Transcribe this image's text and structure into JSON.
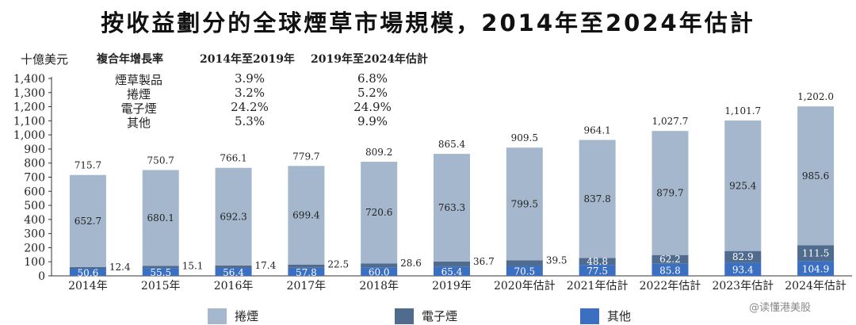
{
  "title": "按收益劃分的全球煙草市場規模，2014年至2024年估計",
  "unit_label": "十億美元",
  "cagr_table": {
    "header": "複合年增長率",
    "col1": "2014年至2019年",
    "col2": "2019年至2024年估計",
    "rows": [
      {
        "label": "煙草製品",
        "v1": "3.9%",
        "v2": "6.8%"
      },
      {
        "label": "捲煙",
        "v1": "3.2%",
        "v2": "5.2%"
      },
      {
        "label": "電子煙",
        "v1": "24.2%",
        "v2": "24.9%"
      },
      {
        "label": "其他",
        "v1": "5.3%",
        "v2": "9.9%"
      }
    ]
  },
  "colors": {
    "cigarettes": "#a5b7cc",
    "ecig": "#4f6b8e",
    "other": "#3a6fc2"
  },
  "legend": {
    "cigarettes": "捲煙",
    "ecig": "電子煙",
    "other": "其他"
  },
  "watermark": "@读懂港美股",
  "chart_data": {
    "type": "bar",
    "stacked": true,
    "title": "按收益劃分的全球煙草市場規模，2014年至2024年估計",
    "ylabel": "十億美元",
    "ylim": [
      0,
      1400
    ],
    "yticks": [
      "0",
      "100",
      "200",
      "300",
      "400",
      "500",
      "600",
      "700",
      "800",
      "900",
      "1,000",
      "1,100",
      "1,200",
      "1,300",
      "1,400"
    ],
    "categories": [
      "2014年",
      "2015年",
      "2016年",
      "2017年",
      "2018年",
      "2019年",
      "2020年估計",
      "2021年估計",
      "2022年估計",
      "2023年估計",
      "2024年估計"
    ],
    "series": [
      {
        "name": "其他",
        "values": [
          50.6,
          55.5,
          56.4,
          57.8,
          60.0,
          65.4,
          70.5,
          77.5,
          85.8,
          93.4,
          104.9
        ],
        "labels": [
          "50.6",
          "55.5",
          "56.4",
          "57.8",
          "60.0",
          "65.4",
          "70.5",
          "77.5",
          "85.8",
          "93.4",
          "104.9"
        ]
      },
      {
        "name": "電子煙",
        "values": [
          12.4,
          15.1,
          17.4,
          22.5,
          28.6,
          36.7,
          39.5,
          48.8,
          62.2,
          82.9,
          111.5
        ],
        "labels": [
          "12.4",
          "15.1",
          "17.4",
          "22.5",
          "28.6",
          "36.7",
          "39.5",
          "48.8",
          "62.2",
          "82.9",
          "111.5"
        ]
      },
      {
        "name": "捲煙",
        "values": [
          652.7,
          680.1,
          692.3,
          699.4,
          720.6,
          763.3,
          799.5,
          837.8,
          879.7,
          925.4,
          985.6
        ],
        "labels": [
          "652.7",
          "680.1",
          "692.3",
          "699.4",
          "720.6",
          "763.3",
          "799.5",
          "837.8",
          "879.7",
          "925.4",
          "985.6"
        ]
      }
    ],
    "totals": [
      715.7,
      750.7,
      766.1,
      779.7,
      809.2,
      865.4,
      909.5,
      964.1,
      1027.7,
      1101.7,
      1202.0
    ],
    "total_labels": [
      "715.7",
      "750.7",
      "766.1",
      "779.7",
      "809.2",
      "865.4",
      "909.5",
      "964.1",
      "1,027.7",
      "1,101.7",
      "1,202.0"
    ]
  }
}
